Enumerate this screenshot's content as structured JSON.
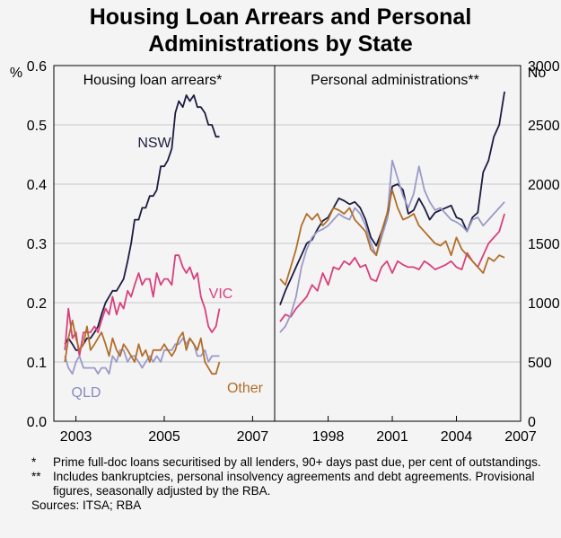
{
  "title_lines": [
    "Housing Loan Arrears and Personal",
    "Administrations by State"
  ],
  "colors": {
    "NSW": "#1c1c42",
    "VIC": "#d8407e",
    "QLD": "#9a9ac8",
    "Other": "#b26e2a",
    "grid": "#9a9a9a"
  },
  "chart_data": [
    {
      "type": "line",
      "title": "Housing loan arrears*",
      "ylabel": "%",
      "ylim": [
        0,
        0.6
      ],
      "yticks": [
        "0.0",
        "0.1",
        "0.2",
        "0.3",
        "0.4",
        "0.5",
        "0.6"
      ],
      "xlim": [
        2002.5,
        2007.5
      ],
      "xticks": [
        "2003",
        "2005",
        "2007"
      ],
      "series_labels": [
        "NSW",
        "VIC",
        "QLD",
        "Other"
      ],
      "series": [
        {
          "key": "NSW",
          "x": [
            2002.75,
            2002.83,
            2002.92,
            2003.0,
            2003.08,
            2003.17,
            2003.25,
            2003.33,
            2003.42,
            2003.5,
            2003.58,
            2003.67,
            2003.75,
            2003.83,
            2003.92,
            2004.0,
            2004.08,
            2004.17,
            2004.25,
            2004.33,
            2004.42,
            2004.5,
            2004.58,
            2004.67,
            2004.75,
            2004.83,
            2004.92,
            2005.0,
            2005.08,
            2005.17,
            2005.25,
            2005.33,
            2005.42,
            2005.5,
            2005.58,
            2005.67,
            2005.75,
            2005.83,
            2005.92,
            2006.0,
            2006.08,
            2006.17,
            2006.25
          ],
          "y": [
            0.13,
            0.14,
            0.13,
            0.12,
            0.12,
            0.13,
            0.14,
            0.14,
            0.15,
            0.16,
            0.18,
            0.2,
            0.21,
            0.22,
            0.22,
            0.23,
            0.24,
            0.27,
            0.3,
            0.34,
            0.34,
            0.36,
            0.36,
            0.38,
            0.38,
            0.39,
            0.43,
            0.43,
            0.44,
            0.46,
            0.52,
            0.54,
            0.53,
            0.55,
            0.54,
            0.55,
            0.53,
            0.53,
            0.52,
            0.5,
            0.5,
            0.48,
            0.48
          ]
        },
        {
          "key": "VIC",
          "x": [
            2002.75,
            2002.83,
            2002.92,
            2003.0,
            2003.08,
            2003.17,
            2003.25,
            2003.33,
            2003.42,
            2003.5,
            2003.58,
            2003.67,
            2003.75,
            2003.83,
            2003.92,
            2004.0,
            2004.08,
            2004.17,
            2004.25,
            2004.33,
            2004.42,
            2004.5,
            2004.58,
            2004.67,
            2004.75,
            2004.83,
            2004.92,
            2005.0,
            2005.08,
            2005.17,
            2005.25,
            2005.33,
            2005.42,
            2005.5,
            2005.58,
            2005.67,
            2005.75,
            2005.83,
            2005.92,
            2006.0,
            2006.08,
            2006.17,
            2006.25
          ],
          "y": [
            0.12,
            0.19,
            0.14,
            0.15,
            0.11,
            0.15,
            0.15,
            0.15,
            0.16,
            0.15,
            0.17,
            0.19,
            0.18,
            0.21,
            0.18,
            0.2,
            0.19,
            0.22,
            0.21,
            0.23,
            0.25,
            0.23,
            0.24,
            0.24,
            0.21,
            0.25,
            0.23,
            0.24,
            0.24,
            0.23,
            0.28,
            0.28,
            0.26,
            0.25,
            0.26,
            0.24,
            0.25,
            0.21,
            0.19,
            0.16,
            0.15,
            0.16,
            0.19
          ]
        },
        {
          "key": "QLD",
          "x": [
            2002.75,
            2002.83,
            2002.92,
            2003.0,
            2003.08,
            2003.17,
            2003.25,
            2003.33,
            2003.42,
            2003.5,
            2003.58,
            2003.67,
            2003.75,
            2003.83,
            2003.92,
            2004.0,
            2004.08,
            2004.17,
            2004.25,
            2004.33,
            2004.42,
            2004.5,
            2004.58,
            2004.67,
            2004.75,
            2004.83,
            2004.92,
            2005.0,
            2005.08,
            2005.17,
            2005.25,
            2005.33,
            2005.42,
            2005.5,
            2005.58,
            2005.67,
            2005.75,
            2005.83,
            2005.92,
            2006.0,
            2006.08,
            2006.17,
            2006.25
          ],
          "y": [
            0.11,
            0.09,
            0.08,
            0.1,
            0.11,
            0.09,
            0.09,
            0.09,
            0.09,
            0.08,
            0.09,
            0.09,
            0.08,
            0.11,
            0.1,
            0.12,
            0.12,
            0.1,
            0.11,
            0.11,
            0.1,
            0.09,
            0.1,
            0.11,
            0.1,
            0.11,
            0.1,
            0.12,
            0.12,
            0.12,
            0.13,
            0.13,
            0.14,
            0.13,
            0.14,
            0.13,
            0.11,
            0.11,
            0.12,
            0.1,
            0.11,
            0.11,
            0.11
          ]
        },
        {
          "key": "Other",
          "x": [
            2002.75,
            2002.83,
            2002.92,
            2003.0,
            2003.08,
            2003.17,
            2003.25,
            2003.33,
            2003.42,
            2003.5,
            2003.58,
            2003.67,
            2003.75,
            2003.83,
            2003.92,
            2004.0,
            2004.08,
            2004.17,
            2004.25,
            2004.33,
            2004.42,
            2004.5,
            2004.58,
            2004.67,
            2004.75,
            2004.83,
            2004.92,
            2005.0,
            2005.08,
            2005.17,
            2005.25,
            2005.33,
            2005.42,
            2005.5,
            2005.58,
            2005.67,
            2005.75,
            2005.83,
            2005.92,
            2006.0,
            2006.08,
            2006.17,
            2006.25
          ],
          "y": [
            0.1,
            0.14,
            0.17,
            0.14,
            0.12,
            0.13,
            0.16,
            0.12,
            0.13,
            0.14,
            0.15,
            0.13,
            0.11,
            0.14,
            0.12,
            0.11,
            0.13,
            0.12,
            0.11,
            0.1,
            0.13,
            0.11,
            0.12,
            0.1,
            0.12,
            0.12,
            0.12,
            0.13,
            0.12,
            0.11,
            0.12,
            0.14,
            0.15,
            0.12,
            0.14,
            0.13,
            0.12,
            0.14,
            0.1,
            0.09,
            0.08,
            0.08,
            0.1
          ]
        }
      ]
    },
    {
      "type": "line",
      "title": "Personal administrations**",
      "ylabel": "No",
      "ylim": [
        0,
        3000
      ],
      "yticks": [
        "0",
        "500",
        "1000",
        "1500",
        "2000",
        "2500",
        "3000"
      ],
      "xlim": [
        1995.5,
        2007.0
      ],
      "xticks": [
        "1998",
        "2001",
        "2004",
        "2007"
      ],
      "series": [
        {
          "key": "NSW",
          "x": [
            1995.75,
            1996.0,
            1996.25,
            1996.5,
            1996.75,
            1997.0,
            1997.25,
            1997.5,
            1997.75,
            1998.0,
            1998.25,
            1998.5,
            1998.75,
            1999.0,
            1999.25,
            1999.5,
            1999.75,
            2000.0,
            2000.25,
            2000.5,
            2000.75,
            2001.0,
            2001.25,
            2001.5,
            2001.75,
            2002.0,
            2002.25,
            2002.5,
            2002.75,
            2003.0,
            2003.25,
            2003.5,
            2003.75,
            2004.0,
            2004.25,
            2004.5,
            2004.75,
            2005.0,
            2005.25,
            2005.5,
            2005.75,
            2006.0,
            2006.25
          ],
          "y": [
            980,
            1100,
            1200,
            1300,
            1400,
            1500,
            1530,
            1620,
            1690,
            1720,
            1800,
            1880,
            1860,
            1830,
            1850,
            1800,
            1700,
            1550,
            1480,
            1600,
            1700,
            1980,
            2000,
            1950,
            1750,
            1780,
            1880,
            1800,
            1700,
            1760,
            1780,
            1800,
            1820,
            1720,
            1700,
            1600,
            1720,
            1760,
            2100,
            2200,
            2400,
            2500,
            2780
          ]
        },
        {
          "key": "VIC",
          "x": [
            1995.75,
            1996.0,
            1996.25,
            1996.5,
            1996.75,
            1997.0,
            1997.25,
            1997.5,
            1997.75,
            1998.0,
            1998.25,
            1998.5,
            1998.75,
            1999.0,
            1999.25,
            1999.5,
            1999.75,
            2000.0,
            2000.25,
            2000.5,
            2000.75,
            2001.0,
            2001.25,
            2001.5,
            2001.75,
            2002.0,
            2002.25,
            2002.5,
            2002.75,
            2003.0,
            2003.25,
            2003.5,
            2003.75,
            2004.0,
            2004.25,
            2004.5,
            2004.75,
            2005.0,
            2005.25,
            2005.5,
            2005.75,
            2006.0,
            2006.25
          ],
          "y": [
            840,
            900,
            880,
            950,
            1000,
            1050,
            1150,
            1100,
            1250,
            1150,
            1300,
            1280,
            1350,
            1320,
            1380,
            1300,
            1320,
            1200,
            1180,
            1300,
            1350,
            1250,
            1350,
            1320,
            1300,
            1300,
            1280,
            1350,
            1320,
            1280,
            1300,
            1320,
            1350,
            1300,
            1280,
            1420,
            1350,
            1300,
            1400,
            1500,
            1550,
            1600,
            1750
          ]
        },
        {
          "key": "QLD",
          "x": [
            1995.75,
            1996.0,
            1996.25,
            1996.5,
            1996.75,
            1997.0,
            1997.25,
            1997.5,
            1997.75,
            1998.0,
            1998.25,
            1998.5,
            1998.75,
            1999.0,
            1999.25,
            1999.5,
            1999.75,
            2000.0,
            2000.25,
            2000.5,
            2000.75,
            2001.0,
            2001.25,
            2001.5,
            2001.75,
            2002.0,
            2002.25,
            2002.5,
            2002.75,
            2003.0,
            2003.25,
            2003.5,
            2003.75,
            2004.0,
            2004.25,
            2004.5,
            2004.75,
            2005.0,
            2005.25,
            2005.5,
            2005.75,
            2006.0,
            2006.25
          ],
          "y": [
            750,
            800,
            900,
            1050,
            1300,
            1450,
            1550,
            1600,
            1620,
            1650,
            1700,
            1750,
            1720,
            1700,
            1800,
            1750,
            1650,
            1500,
            1400,
            1550,
            1700,
            2200,
            2050,
            1900,
            1800,
            1920,
            2150,
            1950,
            1850,
            1780,
            1800,
            1750,
            1700,
            1680,
            1650,
            1600,
            1700,
            1720,
            1650,
            1700,
            1750,
            1800,
            1850
          ]
        },
        {
          "key": "Other",
          "x": [
            1995.75,
            1996.0,
            1996.25,
            1996.5,
            1996.75,
            1997.0,
            1997.25,
            1997.5,
            1997.75,
            1998.0,
            1998.25,
            1998.5,
            1998.75,
            1999.0,
            1999.25,
            1999.5,
            1999.75,
            2000.0,
            2000.25,
            2000.5,
            2000.75,
            2001.0,
            2001.25,
            2001.5,
            2001.75,
            2002.0,
            2002.25,
            2002.5,
            2002.75,
            2003.0,
            2003.25,
            2003.5,
            2003.75,
            2004.0,
            2004.25,
            2004.5,
            2004.75,
            2005.0,
            2005.25,
            2005.5,
            2005.75,
            2006.0,
            2006.25
          ],
          "y": [
            1200,
            1150,
            1300,
            1450,
            1650,
            1750,
            1700,
            1750,
            1650,
            1700,
            1800,
            1780,
            1750,
            1800,
            1700,
            1650,
            1600,
            1450,
            1400,
            1600,
            1750,
            1950,
            1800,
            1700,
            1720,
            1750,
            1650,
            1600,
            1550,
            1500,
            1480,
            1520,
            1400,
            1550,
            1450,
            1400,
            1350,
            1300,
            1250,
            1380,
            1350,
            1400,
            1380
          ]
        }
      ]
    }
  ],
  "footnotes": [
    {
      "mark": "*",
      "text": "Prime full-doc loans securitised by all lenders, 90+ days past due, per cent of outstandings."
    },
    {
      "mark": "**",
      "text": "Includes bankruptcies, personal insolvency agreements and debt agreements. Provisional figures, seasonally adjusted by the RBA."
    }
  ],
  "sources": "Sources: ITSA; RBA"
}
